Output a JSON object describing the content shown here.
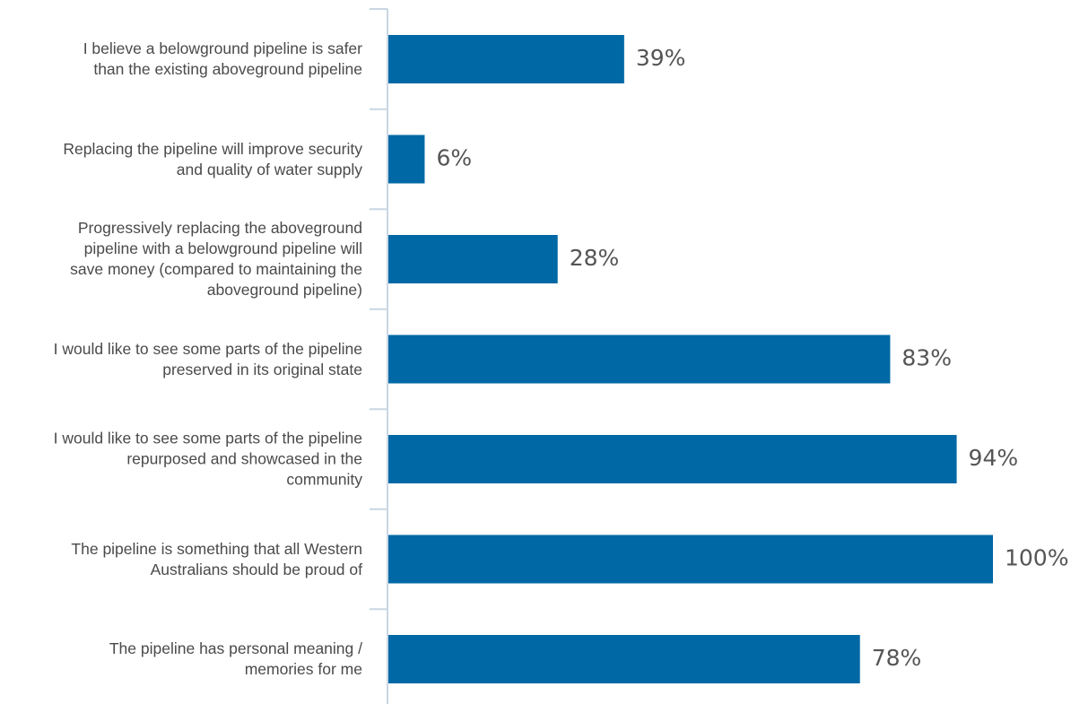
{
  "chart_data": {
    "type": "bar",
    "orientation": "horizontal",
    "categories": [
      [
        "I believe a belowground pipeline is safer",
        "than the existing aboveground pipeline"
      ],
      [
        "Replacing the pipeline will improve security",
        "and quality of water supply"
      ],
      [
        "Progressively replacing the aboveground",
        "pipeline with a belowground pipeline will",
        "save money (compared to maintaining the",
        "aboveground pipeline)"
      ],
      [
        "I would like to see some parts of the pipeline",
        "preserved in its original state"
      ],
      [
        "I would like to see some parts of the pipeline",
        "repurposed and showcased in the",
        "community"
      ],
      [
        "The pipeline is something that all Western",
        "Australians should be proud of"
      ],
      [
        "The pipeline has personal meaning /",
        "memories for me"
      ]
    ],
    "values": [
      39,
      6,
      28,
      83,
      94,
      100,
      78
    ],
    "value_labels": [
      "39%",
      "6%",
      "28%",
      "83%",
      "94%",
      "100%",
      "78%"
    ],
    "xlim": [
      0,
      100
    ],
    "title": "",
    "xlabel": "",
    "ylabel": "",
    "grid": false,
    "legend": "none",
    "colors": {
      "bar": "#0068a5",
      "axis": "#c9d6e3",
      "category_text": "#4a4a4a",
      "value_text": "#555555"
    }
  }
}
